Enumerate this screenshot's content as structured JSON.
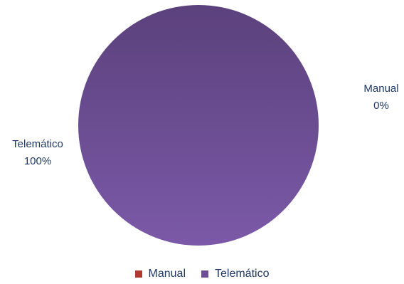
{
  "chart_data": {
    "type": "pie",
    "categories": [
      "Manual",
      "Telemático"
    ],
    "values": [
      0,
      100
    ],
    "data_labels": [
      {
        "name": "Manual",
        "percent": "0%"
      },
      {
        "name": "Telemático",
        "percent": "100%"
      }
    ],
    "colors": [
      "#b03a2e",
      "#6e4f96"
    ],
    "legend_position": "bottom"
  }
}
